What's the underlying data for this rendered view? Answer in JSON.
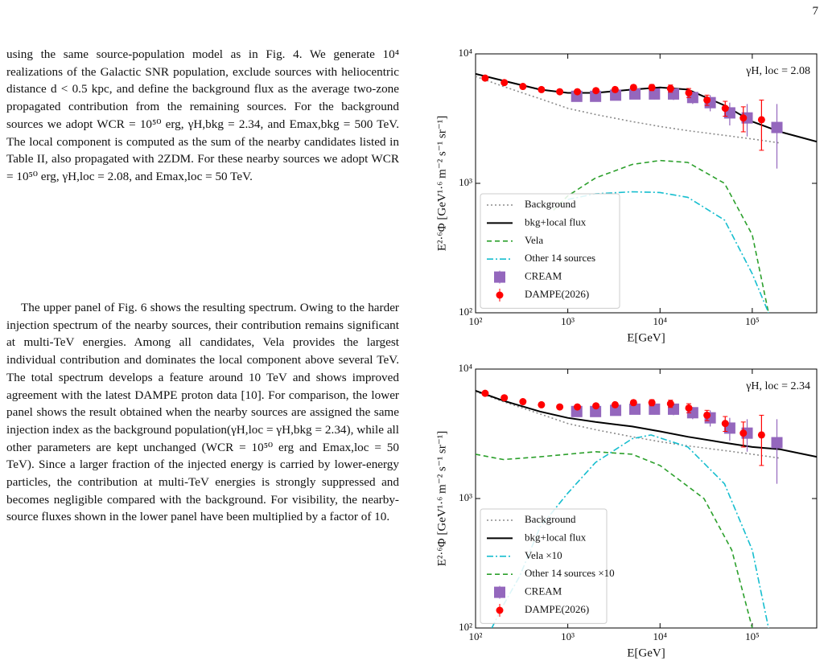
{
  "page_number": "7",
  "paragraphs": [
    "using the same source-population model as in Fig. 4. We generate 10⁴ realizations of the Galactic SNR population, exclude sources with heliocentric distance d < 0.5 kpc, and define the background flux as the average two-zone propagated contribution from the remaining sources. For the background sources we adopt WCR = 10⁵⁰ erg, γH,bkg = 2.34, and Emax,bkg = 500 TeV. The local component is computed as the sum of the nearby candidates listed in Table II, also propagated with 2ZDM. For these nearby sources we adopt WCR = 10⁵⁰ erg, γH,loc = 2.08, and Emax,loc = 50 TeV.",
    "The upper panel of Fig. 6 shows the resulting spectrum. Owing to the harder injection spectrum of the nearby sources, their contribution remains significant at multi-TeV energies. Among all candidates, Vela provides the largest individual contribution and dominates the local component above several TeV. The total spectrum develops a feature around 10 TeV and shows improved agreement with the latest DAMPE proton data [10]. For comparison, the lower panel shows the result obtained when the nearby sources are assigned the same injection index as the background population(γH,loc = γH,bkg = 2.34), while all other parameters are kept unchanged (WCR = 10⁵⁰ erg and Emax,loc = 50 TeV). Since a larger fraction of the injected energy is carried by lower-energy particles, the contribution at multi-TeV energies is strongly suppressed and becomes negligible compared with the background. For visibility, the nearby-source fluxes shown in the lower panel have been multiplied by a factor of 10."
  ],
  "chart_data": [
    {
      "type": "line",
      "annotation": "γH, loc = 2.08",
      "xlabel": "E[GeV]",
      "ylabel": "E²·⁶Φ [GeV¹·⁶ m⁻² s⁻¹ sr⁻¹]",
      "log_x": true,
      "log_y": true,
      "legend": "lower left",
      "xlim": [
        100,
        500000
      ],
      "ylim": [
        100,
        10000
      ],
      "xticks": [
        {
          "value": 100,
          "label": "10²"
        },
        {
          "value": 1000,
          "label": "10³"
        },
        {
          "value": 10000,
          "label": "10⁴"
        },
        {
          "value": 100000,
          "label": "10⁵"
        }
      ],
      "yticks": [
        {
          "value": 100,
          "label": "10²"
        },
        {
          "value": 1000,
          "label": "10³"
        },
        {
          "value": 10000,
          "label": "10⁴"
        }
      ],
      "series": [
        {
          "name": "Background",
          "type": "line",
          "color": "#8c8c8c",
          "style": "dotted",
          "x": [
            100,
            200,
            500,
            1000,
            2000,
            5000,
            10000,
            20000,
            50000,
            100000,
            200000
          ],
          "values": [
            6700,
            5600,
            4500,
            3800,
            3400,
            3000,
            2750,
            2550,
            2350,
            2200,
            2050
          ]
        },
        {
          "name": "bkg+local flux",
          "type": "line",
          "color": "#000000",
          "style": "solid",
          "x": [
            100,
            200,
            500,
            1000,
            2000,
            5000,
            10000,
            20000,
            50000,
            100000,
            200000,
            500000
          ],
          "values": [
            7000,
            6200,
            5300,
            5000,
            5000,
            5300,
            5500,
            5300,
            4000,
            3000,
            2500,
            2100
          ]
        },
        {
          "name": "Vela",
          "type": "line",
          "color": "#2ca02c",
          "style": "dashed",
          "x": [
            700,
            1000,
            2000,
            5000,
            10000,
            20000,
            50000,
            100000,
            150000
          ],
          "values": [
            620,
            800,
            1100,
            1400,
            1500,
            1450,
            1000,
            400,
            100
          ]
        },
        {
          "name": "Other 14 sources",
          "type": "line",
          "color": "#17becf",
          "style": "dashdot",
          "x": [
            1000,
            2000,
            5000,
            10000,
            20000,
            50000,
            100000,
            150000
          ],
          "values": [
            750,
            830,
            860,
            850,
            780,
            520,
            200,
            100
          ]
        },
        {
          "name": "CREAM",
          "type": "scatter",
          "color": "#9467bd",
          "marker": "square",
          "x": [
            1250,
            2000,
            3300,
            5340,
            8700,
            14000,
            22600,
            35000,
            57000,
            88000,
            185000
          ],
          "values": [
            4700,
            4700,
            4800,
            4900,
            4900,
            4900,
            4600,
            4200,
            3500,
            3200,
            2700
          ],
          "errors": [
            300,
            350,
            400,
            400,
            450,
            500,
            500,
            600,
            700,
            900,
            1400
          ]
        },
        {
          "name": "DAMPE(2026)",
          "type": "scatter",
          "color": "#ff0000",
          "marker": "circle",
          "x": [
            127,
            205,
            326,
            518,
            818,
            1270,
            2020,
            3260,
            5160,
            8160,
            13000,
            20500,
            32300,
            50900,
            80000,
            126000
          ],
          "values": [
            6500,
            6000,
            5600,
            5300,
            5100,
            5100,
            5200,
            5300,
            5500,
            5500,
            5400,
            5000,
            4400,
            3800,
            3200,
            3100
          ],
          "errors": [
            100,
            100,
            100,
            100,
            100,
            120,
            150,
            200,
            250,
            300,
            350,
            400,
            400,
            500,
            700,
            1300
          ]
        }
      ]
    },
    {
      "type": "line",
      "annotation": "γH, loc = 2.34",
      "xlabel": "E[GeV]",
      "ylabel": "E²·⁶Φ [GeV¹·⁶ m⁻² s⁻¹ sr⁻¹]",
      "log_x": true,
      "log_y": true,
      "legend": "lower left",
      "xlim": [
        100,
        500000
      ],
      "ylim": [
        100,
        10000
      ],
      "xticks": [
        {
          "value": 100,
          "label": "10²"
        },
        {
          "value": 1000,
          "label": "10³"
        },
        {
          "value": 10000,
          "label": "10⁴"
        },
        {
          "value": 100000,
          "label": "10⁵"
        }
      ],
      "yticks": [
        {
          "value": 100,
          "label": "10²"
        },
        {
          "value": 1000,
          "label": "10³"
        },
        {
          "value": 10000,
          "label": "10⁴"
        }
      ],
      "series": [
        {
          "name": "Background",
          "type": "line",
          "color": "#8c8c8c",
          "style": "dotted",
          "x": [
            100,
            200,
            500,
            1000,
            2000,
            5000,
            10000,
            20000,
            50000,
            100000,
            200000
          ],
          "values": [
            6700,
            5600,
            4500,
            3800,
            3400,
            3000,
            2750,
            2550,
            2350,
            2200,
            2050
          ]
        },
        {
          "name": "bkg+local flux",
          "type": "line",
          "color": "#000000",
          "style": "solid",
          "x": [
            100,
            200,
            500,
            1000,
            2000,
            5000,
            10000,
            20000,
            50000,
            100000,
            200000,
            500000
          ],
          "values": [
            6800,
            5700,
            4700,
            4200,
            3900,
            3600,
            3300,
            3000,
            2700,
            2500,
            2400,
            2100
          ]
        },
        {
          "name": "Vela ×10",
          "type": "line",
          "color": "#17becf",
          "style": "dashdot",
          "x": [
            150,
            200,
            300,
            500,
            1000,
            2000,
            5000,
            8000,
            20000,
            50000,
            100000,
            150000
          ],
          "values": [
            100,
            150,
            250,
            600,
            1100,
            1900,
            2900,
            3100,
            2500,
            1300,
            400,
            100
          ]
        },
        {
          "name": "Other 14 sources ×10",
          "type": "line",
          "color": "#2ca02c",
          "style": "dashed",
          "x": [
            100,
            200,
            500,
            1000,
            2000,
            5000,
            10000,
            30000,
            60000,
            100000
          ],
          "values": [
            2200,
            2000,
            2100,
            2200,
            2300,
            2200,
            1800,
            1000,
            400,
            100
          ]
        },
        {
          "name": "CREAM",
          "type": "scatter",
          "color": "#9467bd",
          "marker": "square",
          "x": [
            1250,
            2000,
            3300,
            5340,
            8700,
            14000,
            22600,
            35000,
            57000,
            88000,
            185000
          ],
          "values": [
            4700,
            4700,
            4800,
            4900,
            4900,
            4900,
            4600,
            4200,
            3500,
            3200,
            2700
          ],
          "errors": [
            300,
            350,
            400,
            400,
            450,
            500,
            500,
            600,
            700,
            900,
            1400
          ]
        },
        {
          "name": "DAMPE(2026)",
          "type": "scatter",
          "color": "#ff0000",
          "marker": "circle",
          "x": [
            127,
            205,
            326,
            518,
            818,
            1270,
            2020,
            3260,
            5160,
            8160,
            13000,
            20500,
            32300,
            50900,
            80000,
            126000
          ],
          "values": [
            6500,
            6000,
            5600,
            5300,
            5100,
            5100,
            5200,
            5300,
            5500,
            5500,
            5400,
            5000,
            4400,
            3800,
            3200,
            3100
          ],
          "errors": [
            100,
            100,
            100,
            100,
            100,
            120,
            150,
            200,
            250,
            300,
            350,
            400,
            400,
            500,
            700,
            1300
          ]
        }
      ]
    }
  ]
}
